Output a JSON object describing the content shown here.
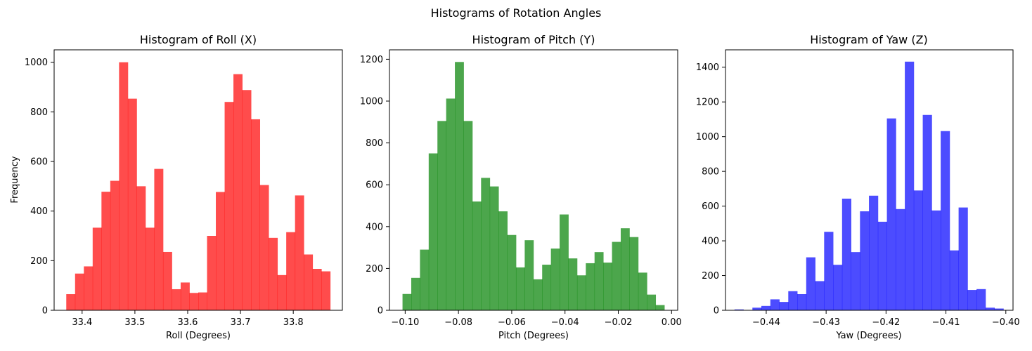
{
  "figure_title": "Histograms of Rotation Angles",
  "chart_data": [
    {
      "type": "bar",
      "title": "Histogram of Roll (X)",
      "xlabel": "Roll (Degrees)",
      "ylabel": "Frequency",
      "color": "#ff0000",
      "alpha": 0.7,
      "xlim": [
        33.347,
        33.893
      ],
      "ylim": [
        0,
        1050
      ],
      "xticks": [
        33.4,
        33.5,
        33.6,
        33.7,
        33.8
      ],
      "xtick_labels": [
        "33.4",
        "33.5",
        "33.6",
        "33.7",
        "33.8"
      ],
      "yticks": [
        0,
        200,
        400,
        600,
        800,
        1000
      ],
      "ytick_labels": [
        "0",
        "200",
        "400",
        "600",
        "800",
        "1000"
      ],
      "bin_range": [
        33.37,
        33.87
      ],
      "values": [
        65,
        148,
        177,
        333,
        478,
        522,
        1000,
        853,
        500,
        333,
        570,
        235,
        85,
        112,
        70,
        72,
        300,
        477,
        840,
        952,
        888,
        770,
        505,
        292,
        142,
        315,
        463,
        225,
        167,
        157
      ]
    },
    {
      "type": "bar",
      "title": "Histogram of Pitch (Y)",
      "xlabel": "Pitch (Degrees)",
      "ylabel": "",
      "color": "#008000",
      "alpha": 0.7,
      "xlim": [
        -0.1059,
        0.0023
      ],
      "ylim": [
        0,
        1245
      ],
      "xticks": [
        -0.1,
        -0.08,
        -0.06,
        -0.04,
        -0.02,
        0.0
      ],
      "xtick_labels": [
        "−0.10",
        "−0.08",
        "−0.06",
        "−0.04",
        "−0.02",
        "0.00"
      ],
      "yticks": [
        0,
        200,
        400,
        600,
        800,
        1000,
        1200
      ],
      "ytick_labels": [
        "0",
        "200",
        "400",
        "600",
        "800",
        "1000",
        "1200"
      ],
      "bin_range": [
        -0.101,
        -0.0027
      ],
      "values": [
        78,
        155,
        290,
        750,
        905,
        1012,
        1187,
        905,
        520,
        633,
        592,
        473,
        360,
        205,
        335,
        148,
        218,
        295,
        458,
        248,
        167,
        225,
        278,
        228,
        327,
        392,
        350,
        180,
        75,
        25
      ]
    },
    {
      "type": "bar",
      "title": "Histogram of Yaw (Z)",
      "xlabel": "Yaw (Degrees)",
      "ylabel": "",
      "color": "#0000ff",
      "alpha": 0.7,
      "xlim": [
        -0.4468,
        -0.3988
      ],
      "ylim": [
        0,
        1500
      ],
      "xticks": [
        -0.44,
        -0.43,
        -0.42,
        -0.41,
        -0.4
      ],
      "xtick_labels": [
        "−0.44",
        "−0.43",
        "−0.42",
        "−0.41",
        "−0.40"
      ],
      "yticks": [
        0,
        200,
        400,
        600,
        800,
        1000,
        1200,
        1400
      ],
      "ytick_labels": [
        "0",
        "200",
        "400",
        "600",
        "800",
        "1000",
        "1200",
        "1400"
      ],
      "bin_range": [
        -0.4453,
        -0.4004
      ],
      "values": [
        5,
        0,
        15,
        25,
        63,
        48,
        110,
        93,
        305,
        168,
        452,
        262,
        643,
        335,
        570,
        660,
        510,
        1105,
        583,
        1432,
        690,
        1125,
        575,
        1032,
        345,
        592,
        117,
        122,
        15,
        10
      ]
    }
  ]
}
